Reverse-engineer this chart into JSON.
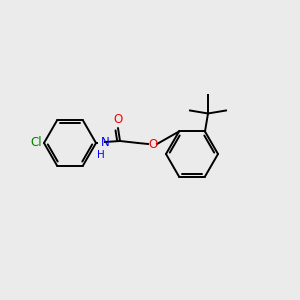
{
  "background_color": "#ebebeb",
  "bond_color": "#000000",
  "atom_colors": {
    "Cl": "#008000",
    "N": "#0000ff",
    "O": "#ff0000",
    "C": "#000000"
  },
  "figsize": [
    3.0,
    3.0
  ],
  "dpi": 100,
  "ring_r": 26,
  "lw": 1.4,
  "fontsize": 8.5
}
